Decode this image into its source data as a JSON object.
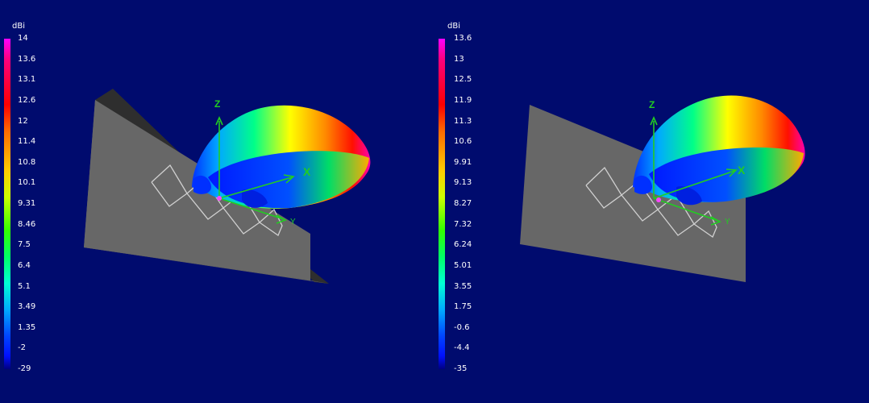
{
  "left_panel": {
    "unit": "dBi",
    "legend_ticks": [
      "14",
      "13.6",
      "13.1",
      "12.6",
      "12",
      "11.4",
      "10.8",
      "10.1",
      "9.31",
      "8.46",
      "7.5",
      "6.4",
      "5.1",
      "3.49",
      "1.35",
      "-2",
      "-29"
    ],
    "axis_labels": {
      "z": "Z",
      "x": "X",
      "y": "Y"
    }
  },
  "right_panel": {
    "unit": "dBi",
    "legend_ticks": [
      "13.6",
      "13",
      "12.5",
      "11.9",
      "11.3",
      "10.6",
      "9.91",
      "9.13",
      "8.27",
      "7.32",
      "6.24",
      "5.01",
      "3.55",
      "1.75",
      "-0.6",
      "-4.4",
      "-35"
    ],
    "axis_labels": {
      "z": "Z",
      "x": "X",
      "y": "Y"
    }
  },
  "colors": {
    "background": "#000b6e",
    "plate": "#555555",
    "axis": "#22cc22"
  }
}
